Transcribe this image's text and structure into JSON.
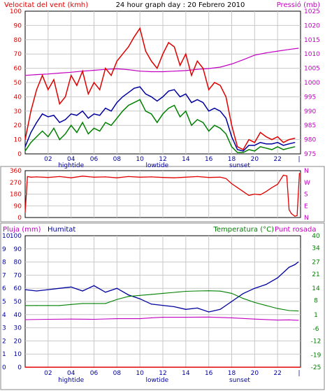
{
  "chart_data": [
    {
      "type": "line",
      "title": "24 hour graph day : 20 Febrero 2010",
      "left_label": "Velocitat del vent (kmh)",
      "right_label": "Pressió (mb)",
      "x_ticks": [
        "02",
        "04",
        "06",
        "08",
        "10",
        "12",
        "14",
        "16",
        "18",
        "20",
        "22"
      ],
      "x_annotations": [
        {
          "label": "hightide",
          "x": 4
        },
        {
          "label": "lowtide",
          "x": 11.5
        },
        {
          "label": "sunset",
          "x": 18.7
        }
      ],
      "x_end_marker": "|",
      "xlim": [
        0,
        24
      ],
      "ylim": [
        0,
        100
      ],
      "y_ticks": [
        0,
        10,
        20,
        30,
        40,
        50,
        60,
        70,
        80,
        90,
        100
      ],
      "y2lim": [
        975,
        1025
      ],
      "y2_ticks": [
        975,
        980,
        985,
        990,
        995,
        1000,
        1005,
        1010,
        1015,
        1020,
        1025
      ],
      "colors": {
        "gust": "#e00000",
        "average": "#0000a0",
        "minimum": "#008000",
        "pressure": "#c000c0",
        "text_left": "#e00000",
        "text_right": "#c000c0"
      },
      "series": [
        {
          "key": "gust",
          "axis": "left",
          "x": [
            0,
            0.5,
            1,
            1.5,
            2,
            2.5,
            3,
            3.5,
            4,
            4.5,
            5,
            5.5,
            6,
            6.5,
            7,
            7.5,
            8,
            8.5,
            9,
            9.5,
            10,
            10.5,
            11,
            11.5,
            12,
            12.5,
            13,
            13.5,
            14,
            14.5,
            15,
            15.5,
            16,
            16.5,
            17,
            17.5,
            18,
            18.5,
            19,
            19.5,
            20,
            20.5,
            21,
            21.5,
            22,
            22.5,
            23,
            23.5
          ],
          "values": [
            10,
            30,
            45,
            55,
            45,
            52,
            35,
            40,
            55,
            48,
            58,
            42,
            50,
            45,
            60,
            55,
            65,
            70,
            75,
            82,
            88,
            72,
            65,
            60,
            70,
            78,
            75,
            62,
            70,
            55,
            65,
            60,
            45,
            50,
            48,
            40,
            20,
            5,
            3,
            10,
            8,
            15,
            12,
            10,
            12,
            8,
            10,
            11
          ]
        },
        {
          "key": "average",
          "axis": "left",
          "x": [
            0,
            0.5,
            1,
            1.5,
            2,
            2.5,
            3,
            3.5,
            4,
            4.5,
            5,
            5.5,
            6,
            6.5,
            7,
            7.5,
            8,
            8.5,
            9,
            9.5,
            10,
            10.5,
            11,
            11.5,
            12,
            12.5,
            13,
            13.5,
            14,
            14.5,
            15,
            15.5,
            16,
            16.5,
            17,
            17.5,
            18,
            18.5,
            19,
            19.5,
            20,
            20.5,
            21,
            21.5,
            22,
            22.5,
            23,
            23.5
          ],
          "values": [
            5,
            15,
            22,
            28,
            26,
            27,
            22,
            24,
            28,
            27,
            30,
            25,
            28,
            27,
            32,
            30,
            36,
            40,
            43,
            46,
            47,
            42,
            40,
            37,
            40,
            44,
            45,
            40,
            42,
            36,
            38,
            36,
            30,
            32,
            30,
            25,
            12,
            3,
            2,
            6,
            6,
            8,
            7,
            7,
            8,
            6,
            7,
            8
          ]
        },
        {
          "key": "minimum",
          "axis": "left",
          "x": [
            0,
            0.5,
            1,
            1.5,
            2,
            2.5,
            3,
            3.5,
            4,
            4.5,
            5,
            5.5,
            6,
            6.5,
            7,
            7.5,
            8,
            8.5,
            9,
            9.5,
            10,
            10.5,
            11,
            11.5,
            12,
            12.5,
            13,
            13.5,
            14,
            14.5,
            15,
            15.5,
            16,
            16.5,
            17,
            17.5,
            18,
            18.5,
            19,
            19.5,
            20,
            20.5,
            21,
            21.5,
            22,
            22.5,
            23,
            23.5
          ],
          "values": [
            2,
            8,
            12,
            16,
            12,
            18,
            10,
            14,
            20,
            15,
            22,
            14,
            18,
            16,
            22,
            20,
            25,
            30,
            34,
            36,
            38,
            30,
            28,
            22,
            28,
            32,
            34,
            26,
            30,
            20,
            24,
            22,
            16,
            20,
            18,
            14,
            5,
            1,
            1,
            3,
            2,
            5,
            4,
            3,
            5,
            3,
            4,
            5
          ]
        },
        {
          "key": "pressure",
          "axis": "right",
          "x": [
            0,
            1,
            2,
            3,
            4,
            5,
            6,
            7,
            8,
            9,
            10,
            11,
            12,
            13,
            14,
            15,
            16,
            17,
            18,
            19,
            20,
            21,
            22,
            23,
            23.8
          ],
          "values": [
            1002.5,
            1002.8,
            1003,
            1003.3,
            1003.6,
            1004,
            1004.3,
            1004.6,
            1004.8,
            1004.5,
            1004,
            1003.8,
            1003.8,
            1004,
            1004.2,
            1004.6,
            1004.9,
            1005.4,
            1006.5,
            1008,
            1009.6,
            1010.4,
            1011,
            1011.6,
            1012
          ]
        }
      ]
    },
    {
      "type": "line",
      "xlim": [
        0,
        24
      ],
      "ylim": [
        0,
        360
      ],
      "y_ticks": [
        0,
        90,
        180,
        270,
        360
      ],
      "y_tick_labels": [
        "0",
        "90",
        "180",
        "270",
        "360"
      ],
      "y2_tick_labels": [
        "N",
        "E",
        "S",
        "W",
        "N"
      ],
      "x_end_marker": "|",
      "colors": {
        "direction": "#e00000"
      },
      "series": [
        {
          "key": "direction",
          "x": [
            0,
            0.2,
            0.5,
            1,
            2,
            3,
            4,
            5,
            6,
            7,
            8,
            9,
            10,
            11,
            12,
            13,
            14,
            15,
            16,
            17,
            17.5,
            18,
            18.5,
            19,
            19.5,
            20,
            20.5,
            21,
            21.5,
            22,
            22.5,
            22.8,
            23,
            23.2,
            23.5,
            23.7,
            23.9
          ],
          "values": [
            40,
            315,
            310,
            312,
            308,
            315,
            305,
            318,
            310,
            312,
            305,
            315,
            310,
            312,
            308,
            305,
            310,
            315,
            308,
            310,
            300,
            260,
            230,
            200,
            170,
            180,
            175,
            200,
            230,
            255,
            325,
            320,
            60,
            30,
            10,
            15,
            340
          ]
        }
      ]
    },
    {
      "type": "line",
      "left_label_1": "Pluja (mm)",
      "left_label_2": "Humitat",
      "right_label_1": "Temperatura (°C)",
      "right_label_2": "Punt rosada",
      "xlim": [
        0,
        24
      ],
      "x_ticks": [
        "02",
        "04",
        "06",
        "08",
        "10",
        "12",
        "14",
        "16",
        "18",
        "20",
        "22"
      ],
      "x_annotations": [
        {
          "label": "hightide",
          "x": 4
        },
        {
          "label": "lowtide",
          "x": 11.5
        },
        {
          "label": "sunset",
          "x": 18.7
        }
      ],
      "x_end_marker": "|",
      "rain_ticks": [
        0,
        1,
        2,
        3,
        4,
        5,
        6,
        7,
        8,
        9,
        10
      ],
      "rain_lim": [
        0,
        10
      ],
      "humidity_ticks": [
        0,
        10,
        20,
        30,
        40,
        50,
        60,
        70,
        80,
        90,
        100
      ],
      "humidity_lim": [
        0,
        100
      ],
      "temp_ticks": [
        -25,
        -19,
        -12,
        -6,
        1,
        8,
        14,
        21,
        27,
        34,
        40
      ],
      "temp_lim": [
        -25,
        40
      ],
      "colors": {
        "rain": "#e00000",
        "humidity": "#0000a0",
        "temperature": "#008000",
        "dew_point": "#c000c0",
        "text_rain": "#c000c0",
        "text_humidity": "#0000a0",
        "text_temp": "#008000"
      },
      "series": [
        {
          "key": "rain",
          "axis": "rain",
          "x": [
            0,
            24
          ],
          "values": [
            0,
            0
          ]
        },
        {
          "key": "humidity",
          "axis": "humidity",
          "x": [
            0,
            1,
            2,
            3,
            4,
            5,
            6,
            7,
            8,
            9,
            10,
            11,
            12,
            13,
            14,
            15,
            16,
            17,
            18,
            19,
            20,
            21,
            22,
            23,
            23.5,
            23.8
          ],
          "values": [
            59,
            58,
            59,
            60,
            61,
            58,
            62,
            57,
            60,
            55,
            52,
            48,
            47,
            46,
            44,
            45,
            42,
            44,
            50,
            56,
            60,
            63,
            68,
            76,
            78,
            80
          ]
        },
        {
          "key": "temperature",
          "axis": "temp",
          "x": [
            0,
            1,
            2,
            3,
            4,
            5,
            6,
            7,
            8,
            9,
            10,
            11,
            12,
            13,
            14,
            15,
            16,
            17,
            18,
            19,
            20,
            21,
            22,
            23,
            23.8
          ],
          "values": [
            5.5,
            5.5,
            5.5,
            5.5,
            6,
            6.5,
            6.5,
            6.5,
            8.5,
            10,
            10.5,
            11,
            11.5,
            12,
            12.5,
            12.7,
            12.8,
            12.6,
            11.5,
            9,
            7,
            5.5,
            4,
            3,
            2.8
          ]
        },
        {
          "key": "dew_point",
          "axis": "temp",
          "x": [
            0,
            2,
            4,
            6,
            8,
            10,
            11,
            12,
            14,
            16,
            18,
            20,
            22,
            23,
            23.8
          ],
          "values": [
            -1.5,
            -1.3,
            -1.2,
            -1.3,
            -1,
            -1,
            -0.6,
            -0.3,
            -0.3,
            -0.2,
            -0.6,
            -1.2,
            -1.7,
            -1.6,
            -1.8
          ]
        }
      ]
    }
  ]
}
